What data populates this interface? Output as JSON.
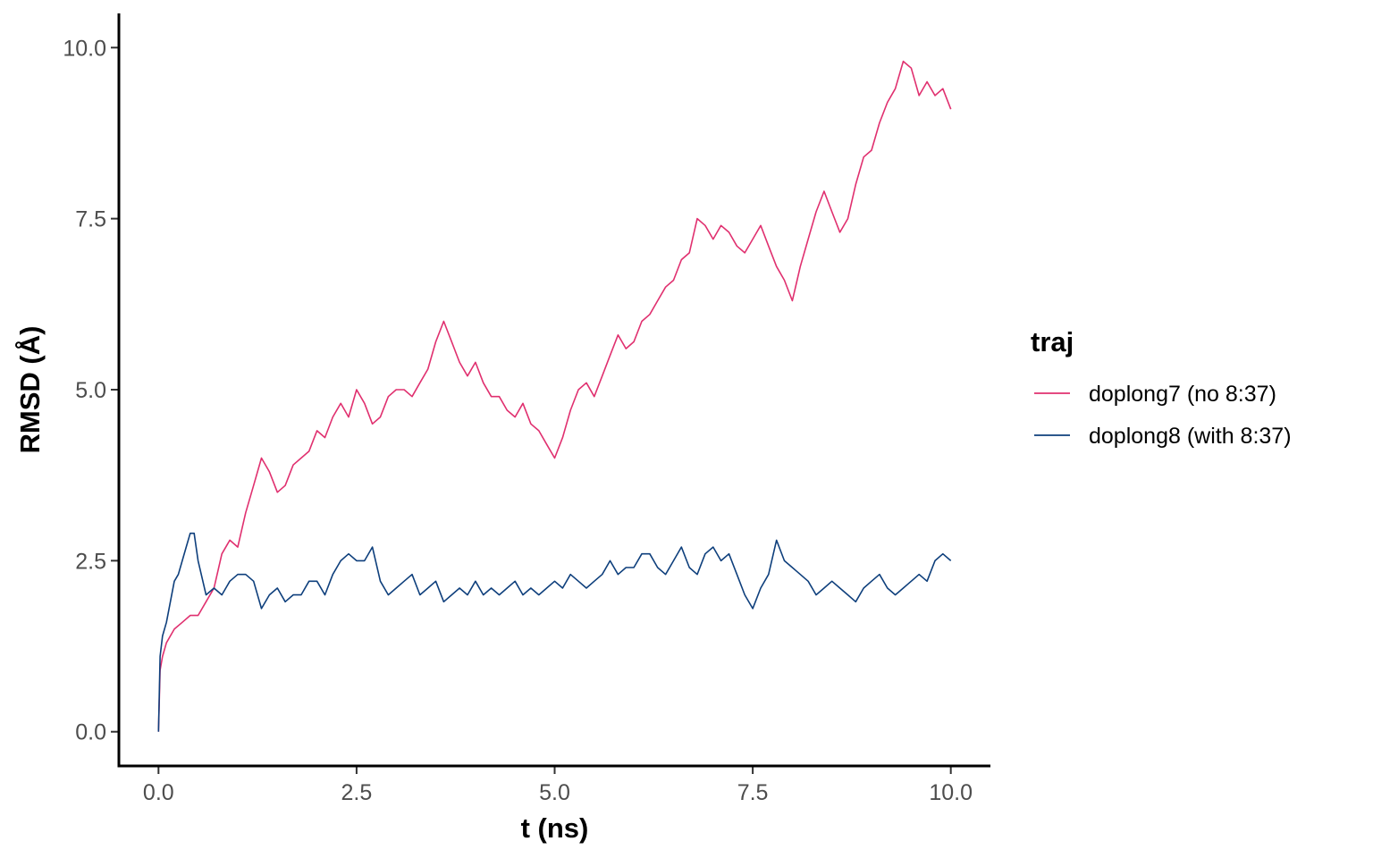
{
  "chart_data": {
    "type": "line",
    "title": "",
    "xlabel": "t (ns)",
    "ylabel": "RMSD (Å)",
    "xlim": [
      -0.5,
      10.5
    ],
    "ylim": [
      -0.5,
      10.5
    ],
    "x_ticks": [
      "0.0",
      "2.5",
      "5.0",
      "7.5",
      "10.0"
    ],
    "y_ticks": [
      "0.0",
      "2.5",
      "5.0",
      "7.5",
      "10.0"
    ],
    "grid": false,
    "legend": {
      "title": "traj",
      "placement": "right"
    },
    "series": [
      {
        "name": "doplong7 (no 8:37)",
        "color": "#e0306f",
        "x": [
          0.0,
          0.02,
          0.05,
          0.1,
          0.2,
          0.3,
          0.4,
          0.5,
          0.6,
          0.7,
          0.8,
          0.9,
          1.0,
          1.1,
          1.2,
          1.3,
          1.4,
          1.5,
          1.6,
          1.7,
          1.8,
          1.9,
          2.0,
          2.1,
          2.2,
          2.3,
          2.4,
          2.5,
          2.6,
          2.7,
          2.8,
          2.9,
          3.0,
          3.1,
          3.2,
          3.3,
          3.4,
          3.5,
          3.6,
          3.7,
          3.8,
          3.9,
          4.0,
          4.1,
          4.2,
          4.3,
          4.4,
          4.5,
          4.6,
          4.7,
          4.8,
          4.9,
          5.0,
          5.1,
          5.2,
          5.3,
          5.4,
          5.5,
          5.6,
          5.7,
          5.8,
          5.9,
          6.0,
          6.1,
          6.2,
          6.3,
          6.4,
          6.5,
          6.6,
          6.7,
          6.8,
          6.9,
          7.0,
          7.1,
          7.2,
          7.3,
          7.4,
          7.5,
          7.6,
          7.7,
          7.8,
          7.9,
          8.0,
          8.1,
          8.2,
          8.3,
          8.4,
          8.5,
          8.6,
          8.7,
          8.8,
          8.9,
          9.0,
          9.1,
          9.2,
          9.3,
          9.4,
          9.5,
          9.6,
          9.7,
          9.8,
          9.9,
          10.0
        ],
        "values": [
          0.0,
          0.9,
          1.1,
          1.3,
          1.5,
          1.6,
          1.7,
          1.7,
          1.9,
          2.1,
          2.6,
          2.8,
          2.7,
          3.2,
          3.6,
          4.0,
          3.8,
          3.5,
          3.6,
          3.9,
          4.0,
          4.1,
          4.4,
          4.3,
          4.6,
          4.8,
          4.6,
          5.0,
          4.8,
          4.5,
          4.6,
          4.9,
          5.0,
          5.0,
          4.9,
          5.1,
          5.3,
          5.7,
          6.0,
          5.7,
          5.4,
          5.2,
          5.4,
          5.1,
          4.9,
          4.9,
          4.7,
          4.6,
          4.8,
          4.5,
          4.4,
          4.2,
          4.0,
          4.3,
          4.7,
          5.0,
          5.1,
          4.9,
          5.2,
          5.5,
          5.8,
          5.6,
          5.7,
          6.0,
          6.1,
          6.3,
          6.5,
          6.6,
          6.9,
          7.0,
          7.5,
          7.4,
          7.2,
          7.4,
          7.3,
          7.1,
          7.0,
          7.2,
          7.4,
          7.1,
          6.8,
          6.6,
          6.3,
          6.8,
          7.2,
          7.6,
          7.9,
          7.6,
          7.3,
          7.5,
          8.0,
          8.4,
          8.5,
          8.9,
          9.2,
          9.4,
          9.8,
          9.7,
          9.3,
          9.5,
          9.3,
          9.4,
          9.1
        ]
      },
      {
        "name": "doplong8 (with 8:37)",
        "color": "#0e3f7c",
        "x": [
          0.0,
          0.02,
          0.05,
          0.1,
          0.15,
          0.2,
          0.25,
          0.3,
          0.35,
          0.4,
          0.45,
          0.5,
          0.6,
          0.7,
          0.8,
          0.9,
          1.0,
          1.1,
          1.2,
          1.3,
          1.4,
          1.5,
          1.6,
          1.7,
          1.8,
          1.9,
          2.0,
          2.1,
          2.2,
          2.3,
          2.4,
          2.5,
          2.6,
          2.7,
          2.8,
          2.9,
          3.0,
          3.1,
          3.2,
          3.3,
          3.4,
          3.5,
          3.6,
          3.7,
          3.8,
          3.9,
          4.0,
          4.1,
          4.2,
          4.3,
          4.4,
          4.5,
          4.6,
          4.7,
          4.8,
          4.9,
          5.0,
          5.1,
          5.2,
          5.3,
          5.4,
          5.5,
          5.6,
          5.7,
          5.8,
          5.9,
          6.0,
          6.1,
          6.2,
          6.3,
          6.4,
          6.5,
          6.6,
          6.7,
          6.8,
          6.9,
          7.0,
          7.1,
          7.2,
          7.3,
          7.4,
          7.5,
          7.6,
          7.7,
          7.8,
          7.9,
          8.0,
          8.1,
          8.2,
          8.3,
          8.4,
          8.5,
          8.6,
          8.7,
          8.8,
          8.9,
          9.0,
          9.1,
          9.2,
          9.3,
          9.4,
          9.5,
          9.6,
          9.7,
          9.8,
          9.9,
          10.0
        ],
        "values": [
          0.0,
          1.1,
          1.4,
          1.6,
          1.9,
          2.2,
          2.3,
          2.5,
          2.7,
          2.9,
          2.9,
          2.5,
          2.0,
          2.1,
          2.0,
          2.2,
          2.3,
          2.3,
          2.2,
          1.8,
          2.0,
          2.1,
          1.9,
          2.0,
          2.0,
          2.2,
          2.2,
          2.0,
          2.3,
          2.5,
          2.6,
          2.5,
          2.5,
          2.7,
          2.2,
          2.0,
          2.1,
          2.2,
          2.3,
          2.0,
          2.1,
          2.2,
          1.9,
          2.0,
          2.1,
          2.0,
          2.2,
          2.0,
          2.1,
          2.0,
          2.1,
          2.2,
          2.0,
          2.1,
          2.0,
          2.1,
          2.2,
          2.1,
          2.3,
          2.2,
          2.1,
          2.2,
          2.3,
          2.5,
          2.3,
          2.4,
          2.4,
          2.6,
          2.6,
          2.4,
          2.3,
          2.5,
          2.7,
          2.4,
          2.3,
          2.6,
          2.7,
          2.5,
          2.6,
          2.3,
          2.0,
          1.8,
          2.1,
          2.3,
          2.8,
          2.5,
          2.4,
          2.3,
          2.2,
          2.0,
          2.1,
          2.2,
          2.1,
          2.0,
          1.9,
          2.1,
          2.2,
          2.3,
          2.1,
          2.0,
          2.1,
          2.2,
          2.3,
          2.2,
          2.5,
          2.6,
          2.5
        ]
      }
    ]
  }
}
